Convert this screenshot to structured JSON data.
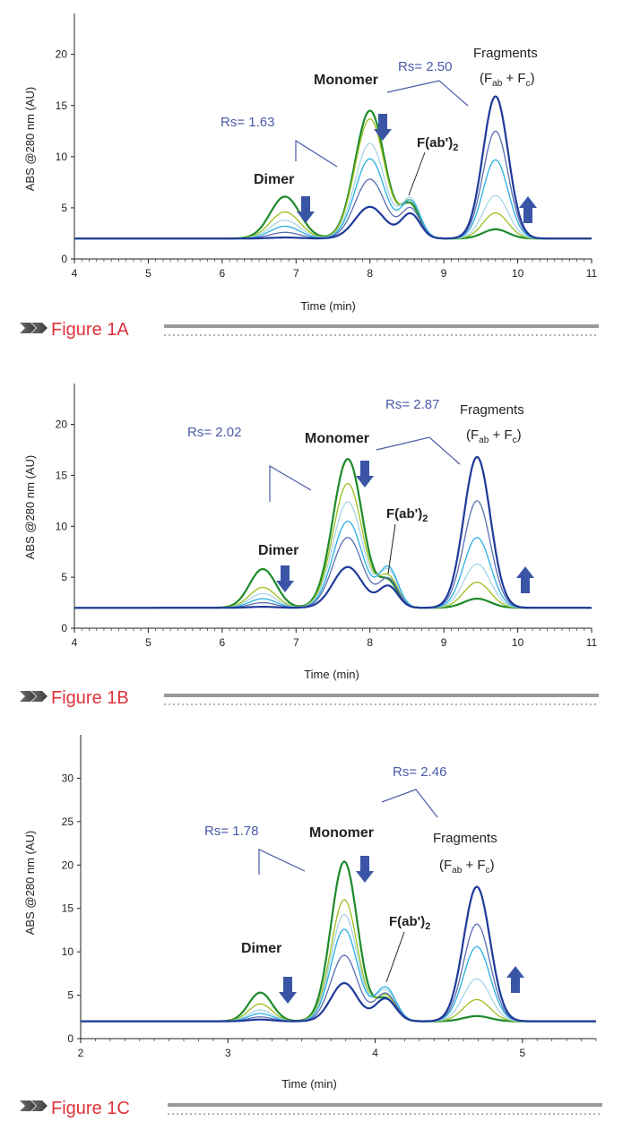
{
  "chart_data": [
    {
      "type": "line",
      "figure_label": "Figure 1A",
      "xlabel": "Time (min)",
      "ylabel": "ABS @280 nm (AU)",
      "xlim": [
        4,
        11
      ],
      "ylim": [
        0,
        24
      ],
      "xticks": [
        4,
        5,
        6,
        7,
        8,
        9,
        10,
        11
      ],
      "yticks": [
        0,
        5,
        10,
        15,
        20
      ],
      "baseline": 2,
      "peaks": {
        "dimer": 6.85,
        "monomer": 8.0,
        "fab2": 8.55,
        "fragments": 9.7
      },
      "widths": {
        "dimer": 0.2,
        "monomer": 0.2,
        "fab2": 0.13,
        "fragments": 0.17
      },
      "series": [
        {
          "name": "trace 1",
          "color": "#1d8a2a",
          "heights": {
            "dimer": 6.1,
            "monomer": 14.5,
            "fab2": 5.2,
            "fragments": 2.9
          }
        },
        {
          "name": "trace 2",
          "color": "#9cbf1e",
          "heights": {
            "dimer": 4.6,
            "monomer": 13.7,
            "fab2": 5.5,
            "fragments": 4.5
          }
        },
        {
          "name": "trace 3",
          "color": "#a9d4e8",
          "heights": {
            "dimer": 3.8,
            "monomer": 11.3,
            "fab2": 5.8,
            "fragments": 6.2
          }
        },
        {
          "name": "trace 4",
          "color": "#2aaee0",
          "heights": {
            "dimer": 3.2,
            "monomer": 9.8,
            "fab2": 5.6,
            "fragments": 9.7
          }
        },
        {
          "name": "trace 5",
          "color": "#5a6fb0",
          "heights": {
            "dimer": 2.6,
            "monomer": 7.8,
            "fab2": 4.9,
            "fragments": 12.5
          }
        },
        {
          "name": "trace 6",
          "color": "#1f3a99",
          "heights": {
            "dimer": 2.1,
            "monomer": 5.1,
            "fab2": 4.4,
            "fragments": 15.9
          }
        }
      ],
      "annotations": {
        "dimer": "Dimer",
        "monomer": "Monomer",
        "fab2": "F(ab')",
        "fab2_sub": "2",
        "fragments": "Fragments",
        "fab_open": "(F",
        "fab_sub": "ab",
        "fab_plus": " + F",
        "fc_sub": "c",
        "fab_close": ")",
        "rs_left": "Rs= 1.63",
        "rs_right": "Rs= 2.50"
      }
    },
    {
      "type": "line",
      "figure_label": "Figure 1B",
      "xlabel": "Time (min)",
      "ylabel": "ABS @280 nm (AU)",
      "xlim": [
        4,
        11
      ],
      "ylim": [
        0,
        24
      ],
      "xticks": [
        4,
        5,
        6,
        7,
        8,
        9,
        10,
        11
      ],
      "yticks": [
        0,
        5,
        10,
        15,
        20
      ],
      "baseline": 2,
      "peaks": {
        "dimer": 6.55,
        "monomer": 7.7,
        "fab2": 8.25,
        "fragments": 9.45
      },
      "widths": {
        "dimer": 0.18,
        "monomer": 0.2,
        "fab2": 0.13,
        "fragments": 0.18
      },
      "series": [
        {
          "name": "trace 1",
          "color": "#1d8a2a",
          "heights": {
            "dimer": 5.8,
            "monomer": 16.6,
            "fab2": 4.5,
            "fragments": 2.9
          }
        },
        {
          "name": "trace 2",
          "color": "#9cbf1e",
          "heights": {
            "dimer": 4.0,
            "monomer": 14.2,
            "fab2": 5.0,
            "fragments": 4.5
          }
        },
        {
          "name": "trace 3",
          "color": "#a9d4e8",
          "heights": {
            "dimer": 3.4,
            "monomer": 12.4,
            "fab2": 5.6,
            "fragments": 6.3
          }
        },
        {
          "name": "trace 4",
          "color": "#2aaee0",
          "heights": {
            "dimer": 2.9,
            "monomer": 10.5,
            "fab2": 5.9,
            "fragments": 8.9
          }
        },
        {
          "name": "trace 5",
          "color": "#5a6fb0",
          "heights": {
            "dimer": 2.5,
            "monomer": 8.9,
            "fab2": 4.8,
            "fragments": 12.5
          }
        },
        {
          "name": "trace 6",
          "color": "#1f3a99",
          "heights": {
            "dimer": 2.1,
            "monomer": 6.0,
            "fab2": 4.1,
            "fragments": 16.8
          }
        }
      ],
      "annotations": {
        "dimer": "Dimer",
        "monomer": "Monomer",
        "fab2": "F(ab')",
        "fab2_sub": "2",
        "fragments": "Fragments",
        "fab_open": "(F",
        "fab_sub": "ab",
        "fab_plus": " + F",
        "fc_sub": "c",
        "fab_close": ")",
        "rs_left": "Rs= 2.02",
        "rs_right": "Rs= 2.87"
      }
    },
    {
      "type": "line",
      "figure_label": "Figure 1C",
      "xlabel": "Time (min)",
      "ylabel": "ABS @280 nm (AU)",
      "xlim": [
        2,
        5.5
      ],
      "ylim": [
        0,
        35
      ],
      "xticks": [
        2,
        3,
        4,
        5
      ],
      "yticks": [
        0,
        5,
        10,
        15,
        20,
        25,
        30
      ],
      "baseline": 2,
      "peaks": {
        "dimer": 3.22,
        "monomer": 3.79,
        "fab2": 4.07,
        "fragments": 4.69
      },
      "widths": {
        "dimer": 0.08,
        "monomer": 0.09,
        "fab2": 0.07,
        "fragments": 0.09
      },
      "series": [
        {
          "name": "trace 1",
          "color": "#1d8a2a",
          "heights": {
            "dimer": 5.3,
            "monomer": 20.4,
            "fab2": 4.6,
            "fragments": 2.6
          }
        },
        {
          "name": "trace 2",
          "color": "#9cbf1e",
          "heights": {
            "dimer": 4.0,
            "monomer": 16.0,
            "fab2": 5.0,
            "fragments": 4.5
          }
        },
        {
          "name": "trace 3",
          "color": "#a9d4e8",
          "heights": {
            "dimer": 3.3,
            "monomer": 14.3,
            "fab2": 5.6,
            "fragments": 6.9
          }
        },
        {
          "name": "trace 4",
          "color": "#2aaee0",
          "heights": {
            "dimer": 2.9,
            "monomer": 12.6,
            "fab2": 5.9,
            "fragments": 10.6
          }
        },
        {
          "name": "trace 5",
          "color": "#5a6fb0",
          "heights": {
            "dimer": 2.5,
            "monomer": 9.6,
            "fab2": 5.2,
            "fragments": 13.2
          }
        },
        {
          "name": "trace 6",
          "color": "#1f3a99",
          "heights": {
            "dimer": 2.2,
            "monomer": 6.4,
            "fab2": 4.6,
            "fragments": 17.5
          }
        }
      ],
      "annotations": {
        "dimer": "Dimer",
        "monomer": "Monomer",
        "fab2": "F(ab')",
        "fab2_sub": "2",
        "fragments": "Fragments",
        "fab_open": "(F",
        "fab_sub": "ab",
        "fab_plus": " + F",
        "fc_sub": "c",
        "fab_close": ")",
        "rs_left": "Rs= 1.78",
        "rs_right": "Rs= 2.46"
      }
    }
  ],
  "colors": {
    "label_red": "#e0323a",
    "rs_text": "#4a5aa8",
    "arrow_fill": "#3a55a6",
    "rule_gray": "#9a9a9a"
  }
}
